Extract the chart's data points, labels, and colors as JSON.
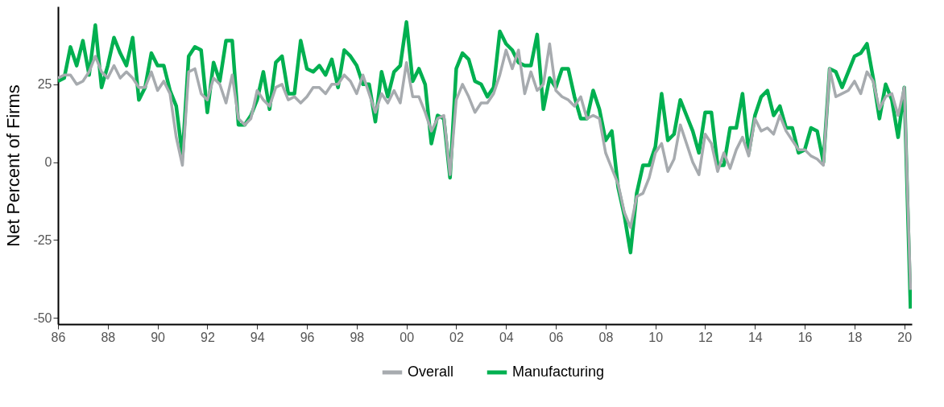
{
  "chart_data": {
    "type": "line",
    "ylabel": "Net Percent of Firms",
    "xlim": [
      1986,
      2020.3
    ],
    "ylim": [
      -52,
      50
    ],
    "xticks": [
      {
        "value": 1986,
        "label": "86"
      },
      {
        "value": 1988,
        "label": "88"
      },
      {
        "value": 1990,
        "label": "90"
      },
      {
        "value": 1992,
        "label": "92"
      },
      {
        "value": 1994,
        "label": "94"
      },
      {
        "value": 1996,
        "label": "96"
      },
      {
        "value": 1998,
        "label": "98"
      },
      {
        "value": 2000,
        "label": "00"
      },
      {
        "value": 2002,
        "label": "02"
      },
      {
        "value": 2004,
        "label": "04"
      },
      {
        "value": 2006,
        "label": "06"
      },
      {
        "value": 2008,
        "label": "08"
      },
      {
        "value": 2010,
        "label": "10"
      },
      {
        "value": 2012,
        "label": "12"
      },
      {
        "value": 2014,
        "label": "14"
      },
      {
        "value": 2016,
        "label": "16"
      },
      {
        "value": 2018,
        "label": "18"
      },
      {
        "value": 2020,
        "label": "20"
      }
    ],
    "yticks": [
      -50,
      -25,
      0,
      25
    ],
    "grid": false,
    "legend": "bottom",
    "line_style": "solid",
    "series": [
      {
        "name": "Overall",
        "color": "#a7abaf",
        "x": [
          1986,
          1986.25,
          1986.5,
          1986.75,
          1987,
          1987.25,
          1987.5,
          1987.75,
          1988,
          1988.25,
          1988.5,
          1988.75,
          1989,
          1989.25,
          1989.5,
          1989.75,
          1990,
          1990.25,
          1990.5,
          1990.75,
          1991,
          1991.25,
          1991.5,
          1991.75,
          1992,
          1992.25,
          1992.5,
          1992.75,
          1993,
          1993.25,
          1993.5,
          1993.75,
          1994,
          1994.25,
          1994.5,
          1994.75,
          1995,
          1995.25,
          1995.5,
          1995.75,
          1996,
          1996.25,
          1996.5,
          1996.75,
          1997,
          1997.25,
          1997.5,
          1997.75,
          1998,
          1998.25,
          1998.5,
          1998.75,
          1999,
          1999.25,
          1999.5,
          1999.75,
          2000,
          2000.25,
          2000.5,
          2000.75,
          2001,
          2001.25,
          2001.5,
          2001.75,
          2002,
          2002.25,
          2002.5,
          2002.75,
          2003,
          2003.25,
          2003.5,
          2003.75,
          2004,
          2004.25,
          2004.5,
          2004.75,
          2005,
          2005.25,
          2005.5,
          2005.75,
          2006,
          2006.25,
          2006.5,
          2006.75,
          2007,
          2007.25,
          2007.5,
          2007.75,
          2008,
          2008.25,
          2008.5,
          2008.75,
          2009,
          2009.25,
          2009.5,
          2009.75,
          2010,
          2010.25,
          2010.5,
          2010.75,
          2011,
          2011.25,
          2011.5,
          2011.75,
          2012,
          2012.25,
          2012.5,
          2012.75,
          2013,
          2013.25,
          2013.5,
          2013.75,
          2014,
          2014.25,
          2014.5,
          2014.75,
          2015,
          2015.25,
          2015.5,
          2015.75,
          2016,
          2016.25,
          2016.5,
          2016.75,
          2017,
          2017.25,
          2017.5,
          2017.75,
          2018,
          2018.25,
          2018.5,
          2018.75,
          2019,
          2019.25,
          2019.5,
          2019.75,
          2020,
          2020.25
        ],
        "values": [
          27,
          28,
          28,
          25,
          26,
          29,
          34,
          29,
          27,
          31,
          27,
          29,
          27,
          24,
          24,
          29,
          23,
          26,
          22,
          8,
          -1,
          29,
          30,
          22,
          20,
          27,
          25,
          19,
          28,
          14,
          12,
          14,
          23,
          20,
          18,
          24,
          25,
          20,
          21,
          19,
          21,
          24,
          24,
          22,
          25,
          25,
          28,
          26,
          22,
          28,
          22,
          16,
          22,
          19,
          23,
          19,
          32,
          21,
          21,
          16,
          10,
          14,
          15,
          -4,
          20,
          25,
          21,
          16,
          19,
          19,
          22,
          28,
          36,
          30,
          36,
          22,
          29,
          23,
          25,
          38,
          23,
          21,
          20,
          18,
          21,
          14,
          15,
          14,
          3,
          -2,
          -7,
          -16,
          -21,
          -11,
          -10,
          -5,
          3,
          6,
          -3,
          1,
          12,
          6,
          0,
          -4,
          9,
          6,
          -3,
          3,
          -2,
          4,
          8,
          2,
          14,
          10,
          11,
          9,
          15,
          10,
          7,
          4,
          4,
          2,
          1,
          -1,
          30,
          21,
          22,
          23,
          26,
          22,
          29,
          26,
          17,
          21,
          22,
          15,
          24,
          -41
        ]
      },
      {
        "name": "Manufacturing",
        "color": "#00b050",
        "x": [
          1986,
          1986.25,
          1986.5,
          1986.75,
          1987,
          1987.25,
          1987.5,
          1987.75,
          1988,
          1988.25,
          1988.5,
          1988.75,
          1989,
          1989.25,
          1989.5,
          1989.75,
          1990,
          1990.25,
          1990.5,
          1990.75,
          1991,
          1991.25,
          1991.5,
          1991.75,
          1992,
          1992.25,
          1992.5,
          1992.75,
          1993,
          1993.25,
          1993.5,
          1993.75,
          1994,
          1994.25,
          1994.5,
          1994.75,
          1995,
          1995.25,
          1995.5,
          1995.75,
          1996,
          1996.25,
          1996.5,
          1996.75,
          1997,
          1997.25,
          1997.5,
          1997.75,
          1998,
          1998.25,
          1998.5,
          1998.75,
          1999,
          1999.25,
          1999.5,
          1999.75,
          2000,
          2000.25,
          2000.5,
          2000.75,
          2001,
          2001.25,
          2001.5,
          2001.75,
          2002,
          2002.25,
          2002.5,
          2002.75,
          2003,
          2003.25,
          2003.5,
          2003.75,
          2004,
          2004.25,
          2004.5,
          2004.75,
          2005,
          2005.25,
          2005.5,
          2005.75,
          2006,
          2006.25,
          2006.5,
          2006.75,
          2007,
          2007.25,
          2007.5,
          2007.75,
          2008,
          2008.25,
          2008.5,
          2008.75,
          2009,
          2009.25,
          2009.5,
          2009.75,
          2010,
          2010.25,
          2010.5,
          2010.75,
          2011,
          2011.25,
          2011.5,
          2011.75,
          2012,
          2012.25,
          2012.5,
          2012.75,
          2013,
          2013.25,
          2013.5,
          2013.75,
          2014,
          2014.25,
          2014.5,
          2014.75,
          2015,
          2015.25,
          2015.5,
          2015.75,
          2016,
          2016.25,
          2016.5,
          2016.75,
          2017,
          2017.25,
          2017.5,
          2017.75,
          2018,
          2018.25,
          2018.5,
          2018.75,
          2019,
          2019.25,
          2019.5,
          2019.75,
          2020,
          2020.25
        ],
        "values": [
          26,
          27,
          37,
          31,
          39,
          28,
          44,
          24,
          31,
          40,
          35,
          31,
          40,
          20,
          24,
          35,
          31,
          31,
          23,
          18,
          2,
          34,
          37,
          36,
          16,
          32,
          26,
          39,
          39,
          12,
          12,
          15,
          20,
          29,
          17,
          32,
          34,
          22,
          22,
          39,
          30,
          29,
          31,
          28,
          33,
          24,
          36,
          34,
          31,
          25,
          25,
          13,
          29,
          21,
          29,
          31,
          45,
          26,
          30,
          25,
          6,
          15,
          14,
          -5,
          30,
          35,
          33,
          26,
          25,
          21,
          24,
          42,
          38,
          36,
          32,
          31,
          31,
          41,
          17,
          27,
          24,
          30,
          30,
          21,
          14,
          14,
          23,
          17,
          7,
          10,
          -8,
          -17,
          -29,
          -10,
          -1,
          -1,
          5,
          22,
          7,
          9,
          20,
          15,
          10,
          3,
          16,
          16,
          -1,
          -1,
          11,
          11,
          22,
          3,
          15,
          21,
          23,
          15,
          18,
          11,
          11,
          3,
          4,
          11,
          10,
          0,
          30,
          29,
          24,
          29,
          34,
          35,
          38,
          27,
          14,
          25,
          20,
          8,
          24,
          -47
        ]
      }
    ]
  }
}
